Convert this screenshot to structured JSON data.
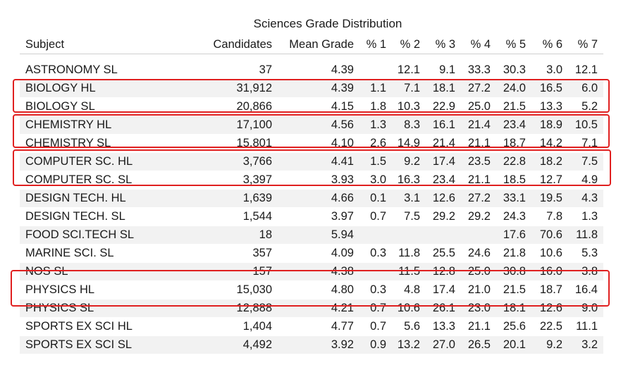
{
  "title": "Sciences Grade Distribution",
  "headers": [
    "Subject",
    "Candidates",
    "Mean Grade",
    "% 1",
    "% 2",
    "% 3",
    "% 4",
    "% 5",
    "% 6",
    "% 7"
  ],
  "rows": [
    [
      "ASTRONOMY SL",
      "37",
      "4.39",
      "",
      "12.1",
      "9.1",
      "33.3",
      "30.3",
      "3.0",
      "12.1"
    ],
    [
      "BIOLOGY HL",
      "31,912",
      "4.39",
      "1.1",
      "7.1",
      "18.1",
      "27.2",
      "24.0",
      "16.5",
      "6.0"
    ],
    [
      "BIOLOGY SL",
      "20,866",
      "4.15",
      "1.8",
      "10.3",
      "22.9",
      "25.0",
      "21.5",
      "13.3",
      "5.2"
    ],
    [
      "CHEMISTRY HL",
      "17,100",
      "4.56",
      "1.3",
      "8.3",
      "16.1",
      "21.4",
      "23.4",
      "18.9",
      "10.5"
    ],
    [
      "CHEMISTRY SL",
      "15,801",
      "4.10",
      "2.6",
      "14.9",
      "21.4",
      "21.1",
      "18.7",
      "14.2",
      "7.1"
    ],
    [
      "COMPUTER SC. HL",
      "3,766",
      "4.41",
      "1.5",
      "9.2",
      "17.4",
      "23.5",
      "22.8",
      "18.2",
      "7.5"
    ],
    [
      "COMPUTER SC. SL",
      "3,397",
      "3.93",
      "3.0",
      "16.3",
      "23.4",
      "21.1",
      "18.5",
      "12.7",
      "4.9"
    ],
    [
      "DESIGN TECH. HL",
      "1,639",
      "4.66",
      "0.1",
      "3.1",
      "12.6",
      "27.2",
      "33.1",
      "19.5",
      "4.3"
    ],
    [
      "DESIGN TECH. SL",
      "1,544",
      "3.97",
      "0.7",
      "7.5",
      "29.2",
      "29.2",
      "24.3",
      "7.8",
      "1.3"
    ],
    [
      "FOOD SCI.TECH SL",
      "18",
      "5.94",
      "",
      "",
      "",
      "",
      "17.6",
      "70.6",
      "11.8"
    ],
    [
      "MARINE SCI. SL",
      "357",
      "4.09",
      "0.3",
      "11.8",
      "25.5",
      "24.6",
      "21.8",
      "10.6",
      "5.3"
    ],
    [
      "NOS SL",
      "157",
      "4.38",
      "",
      "11.5",
      "12.8",
      "25.0",
      "30.8",
      "16.0",
      "3.8"
    ],
    [
      "PHYSICS HL",
      "15,030",
      "4.80",
      "0.3",
      "4.8",
      "17.4",
      "21.0",
      "21.5",
      "18.7",
      "16.4"
    ],
    [
      "PHYSICS SL",
      "12,888",
      "4.21",
      "0.7",
      "10.6",
      "26.1",
      "23.0",
      "18.1",
      "12.6",
      "9.0"
    ],
    [
      "SPORTS EX SCI HL",
      "1,404",
      "4.77",
      "0.7",
      "5.6",
      "13.3",
      "21.1",
      "25.6",
      "22.5",
      "11.1"
    ],
    [
      "SPORTS EX SCI SL",
      "4,492",
      "3.92",
      "0.9",
      "13.2",
      "27.0",
      "26.5",
      "20.1",
      "9.2",
      "3.2"
    ]
  ],
  "highlight_color": "#e02020"
}
